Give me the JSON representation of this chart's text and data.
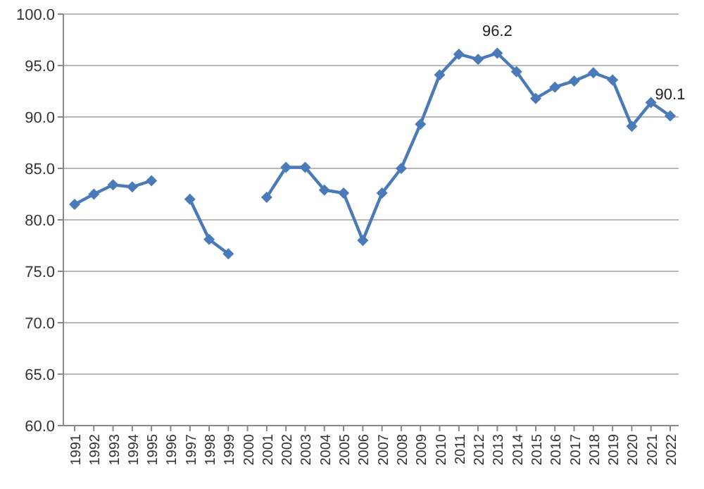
{
  "chart_data": {
    "type": "line",
    "categories": [
      "1991",
      "1992",
      "1993",
      "1994",
      "1995",
      "1996",
      "1997",
      "1998",
      "1999",
      "2000",
      "2001",
      "2002",
      "2003",
      "2004",
      "2005",
      "2006",
      "2007",
      "2008",
      "2009",
      "2010",
      "2011",
      "2012",
      "2013",
      "2014",
      "2015",
      "2016",
      "2017",
      "2018",
      "2019",
      "2020",
      "2021",
      "2022"
    ],
    "series": [
      {
        "color": "#4a7ab8",
        "values": [
          81.5,
          82.5,
          83.4,
          83.2,
          83.8,
          null,
          82.0,
          78.1,
          76.7,
          null,
          82.2,
          85.1,
          85.1,
          82.9,
          82.6,
          78.0,
          82.6,
          85.0,
          89.3,
          94.1,
          96.1,
          95.6,
          96.2,
          94.4,
          91.8,
          92.9,
          93.5,
          94.3,
          93.6,
          89.1,
          91.4,
          90.1
        ]
      }
    ],
    "ylim": [
      60,
      100
    ],
    "yticks": [
      {
        "value": 60,
        "label": "60.0"
      },
      {
        "value": 65,
        "label": "65.0"
      },
      {
        "value": 70,
        "label": "70.0"
      },
      {
        "value": 75,
        "label": "75.0"
      },
      {
        "value": 80,
        "label": "80.0"
      },
      {
        "value": 85,
        "label": "85.0"
      },
      {
        "value": 90,
        "label": "90.0"
      },
      {
        "value": 95,
        "label": "95.0"
      },
      {
        "value": 100,
        "label": "100.0"
      }
    ],
    "grid": "y",
    "marker": "diamond",
    "line_style": "solid",
    "annotations": [
      {
        "text": "96.2",
        "x": "2013",
        "y": 96.2
      },
      {
        "text": "90.1",
        "x": "2022",
        "y": 90.1
      }
    ]
  }
}
